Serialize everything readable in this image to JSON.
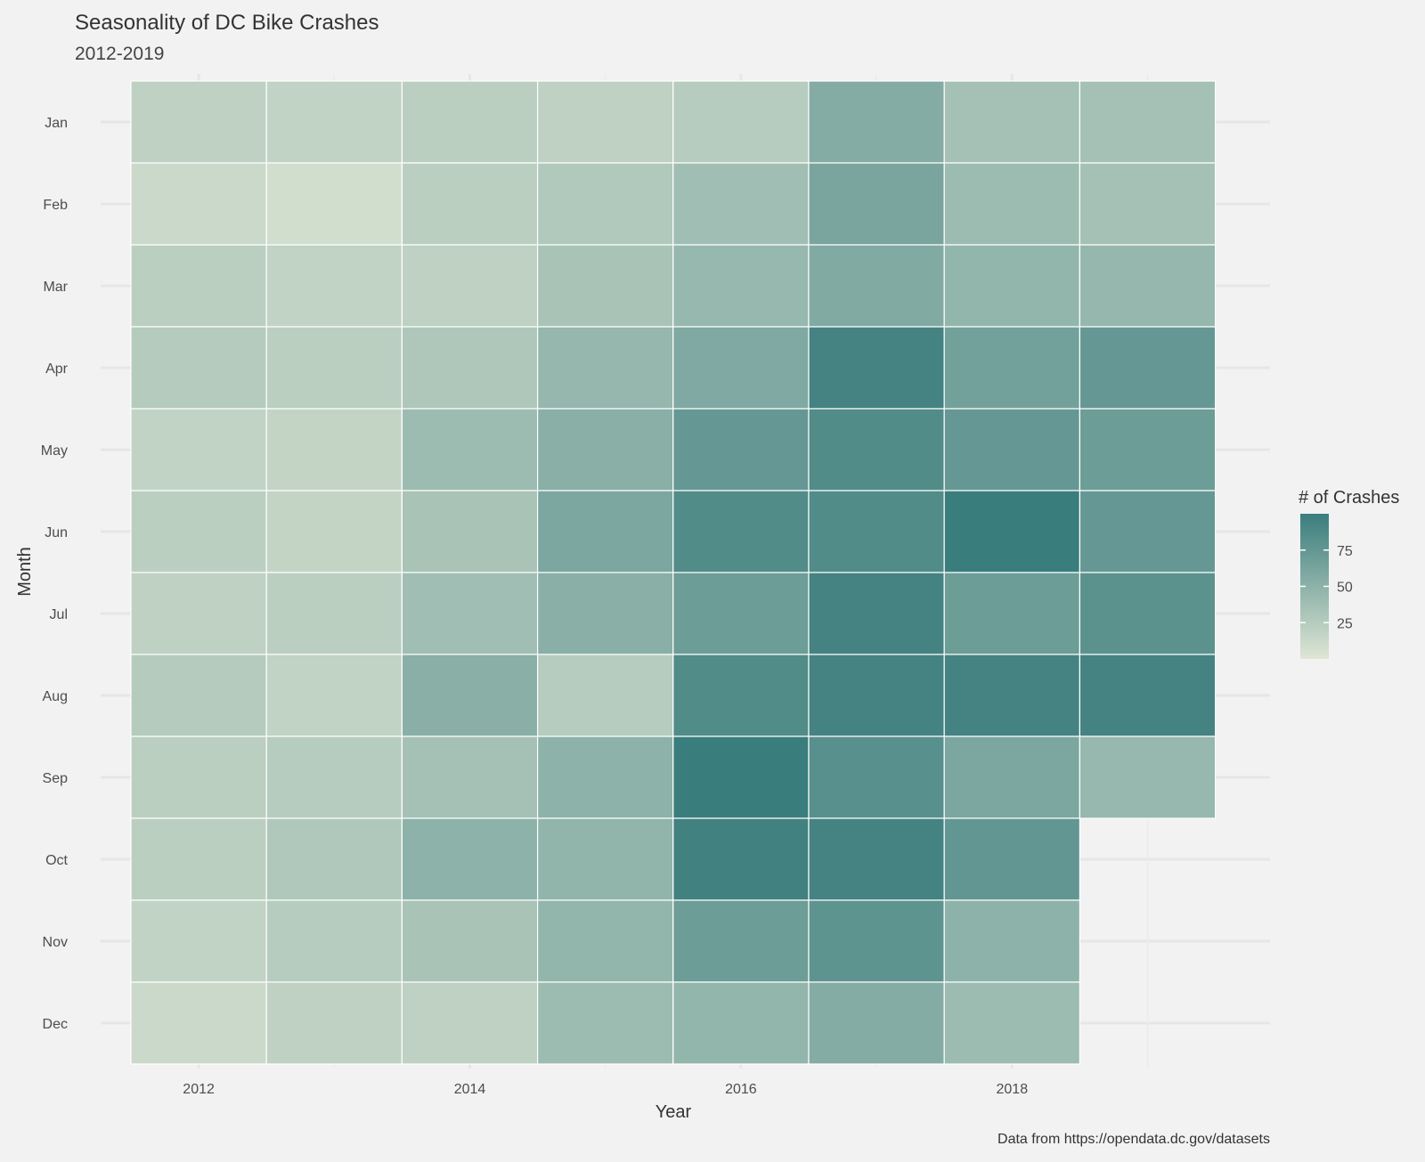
{
  "chart_data": {
    "type": "heatmap",
    "title": "Seasonality of DC Bike Crashes",
    "subtitle": "2012-2019",
    "xlabel": "Year",
    "ylabel": "Month",
    "caption": "Data from https://opendata.dc.gov/datasets",
    "x": [
      2012,
      2013,
      2014,
      2015,
      2016,
      2017,
      2018,
      2019
    ],
    "x_tick_labels": [
      "2012",
      "2014",
      "2016",
      "2018"
    ],
    "y": [
      "Jan",
      "Feb",
      "Mar",
      "Apr",
      "May",
      "Jun",
      "Jul",
      "Aug",
      "Sep",
      "Oct",
      "Nov",
      "Dec"
    ],
    "values": [
      [
        20,
        18,
        22,
        20,
        25,
        55,
        35,
        35
      ],
      [
        12,
        8,
        22,
        28,
        38,
        62,
        40,
        35
      ],
      [
        22,
        18,
        20,
        33,
        44,
        57,
        46,
        45
      ],
      [
        26,
        22,
        30,
        45,
        58,
        94,
        66,
        74
      ],
      [
        18,
        17,
        40,
        52,
        74,
        86,
        74,
        70
      ],
      [
        22,
        17,
        33,
        60,
        86,
        86,
        105,
        74
      ],
      [
        20,
        22,
        38,
        52,
        70,
        94,
        70,
        80
      ],
      [
        26,
        18,
        52,
        25,
        86,
        94,
        94,
        94
      ],
      [
        22,
        25,
        35,
        50,
        100,
        82,
        60,
        44
      ],
      [
        22,
        29,
        50,
        47,
        96,
        94,
        76,
        null
      ],
      [
        18,
        25,
        33,
        46,
        70,
        78,
        50,
        null
      ],
      [
        12,
        20,
        20,
        40,
        46,
        55,
        40,
        null
      ]
    ],
    "legend": {
      "title": "# of Crashes",
      "ticks": [
        25,
        50,
        75
      ],
      "range": [
        0,
        100
      ],
      "low_color": "#dfe6d4",
      "high_color": "#3a7d7d"
    },
    "grid": true
  }
}
